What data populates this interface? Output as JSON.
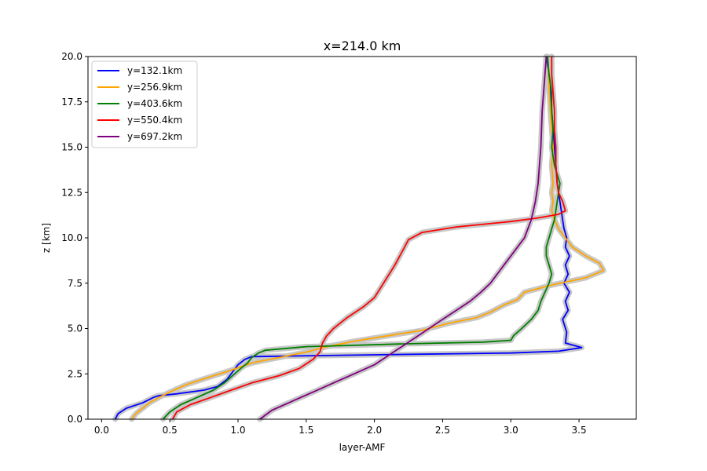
{
  "chart_data": {
    "type": "line",
    "title": "x=214.0 km",
    "xlabel": "layer-AMF",
    "ylabel": "z [km]",
    "xlim": [
      -0.1,
      3.92
    ],
    "ylim": [
      0,
      20
    ],
    "xticks": [
      "0.0",
      "0.5",
      "1.0",
      "1.5",
      "2.0",
      "2.5",
      "3.0",
      "3.5"
    ],
    "yticks": [
      "0.0",
      "2.5",
      "5.0",
      "7.5",
      "10.0",
      "12.5",
      "15.0",
      "17.5",
      "20.0"
    ],
    "grid": false,
    "legend_position": "top-left",
    "uncertainty_band_color": "#c8c8c8",
    "series": [
      {
        "name": "y=132.1km",
        "color": "#0000ff",
        "x": [
          0.1,
          0.12,
          0.18,
          0.3,
          0.38,
          0.42,
          0.55,
          0.75,
          0.85,
          0.92,
          0.96,
          1.0,
          1.05,
          1.1,
          2.0,
          3.0,
          3.35,
          3.52,
          3.4,
          3.41,
          3.38,
          3.42,
          3.4,
          3.43,
          3.39,
          3.42,
          3.4,
          3.43,
          3.4,
          3.41,
          3.39,
          3.38,
          3.37,
          3.36,
          3.34,
          3.33,
          3.32,
          3.31,
          3.3,
          3.29,
          3.29,
          3.28,
          3.27,
          3.26
        ],
        "y": [
          0.0,
          0.3,
          0.6,
          0.9,
          1.2,
          1.3,
          1.4,
          1.6,
          1.8,
          2.2,
          2.6,
          3.0,
          3.3,
          3.45,
          3.55,
          3.65,
          3.75,
          3.95,
          4.2,
          4.8,
          5.5,
          6.0,
          6.5,
          7.0,
          7.5,
          8.0,
          8.5,
          9.0,
          9.5,
          10.0,
          10.5,
          11.0,
          11.5,
          12.0,
          13.0,
          14.0,
          15.0,
          16.0,
          17.0,
          18.0,
          18.5,
          19.0,
          19.5,
          20.0
        ]
      },
      {
        "name": "y=256.9km",
        "color": "#ffa500",
        "x": [
          0.22,
          0.25,
          0.3,
          0.35,
          0.42,
          0.5,
          0.62,
          0.78,
          0.95,
          1.1,
          1.3,
          1.5,
          1.65,
          1.85,
          2.1,
          2.35,
          2.55,
          2.75,
          2.85,
          2.95,
          3.05,
          3.1,
          3.3,
          3.55,
          3.68,
          3.65,
          3.55,
          3.45,
          3.4,
          3.35,
          3.32,
          3.3,
          3.31,
          3.3,
          3.31,
          3.3,
          3.31,
          3.3,
          3.29,
          3.28,
          3.27
        ],
        "y": [
          0.0,
          0.3,
          0.6,
          0.9,
          1.2,
          1.5,
          1.9,
          2.3,
          2.7,
          3.1,
          3.4,
          3.7,
          4.0,
          4.3,
          4.6,
          4.9,
          5.3,
          5.6,
          5.9,
          6.3,
          6.6,
          7.0,
          7.4,
          7.8,
          8.2,
          8.6,
          9.0,
          9.5,
          10.0,
          10.5,
          11.0,
          11.5,
          12.0,
          12.5,
          13.0,
          14.0,
          15.0,
          16.0,
          17.0,
          18.5,
          20.0
        ]
      },
      {
        "name": "y=403.6km",
        "color": "#008000",
        "x": [
          0.45,
          0.5,
          0.58,
          0.7,
          0.82,
          0.9,
          0.96,
          1.02,
          1.07,
          1.1,
          1.15,
          1.2,
          1.5,
          2.2,
          2.8,
          3.0,
          3.02,
          3.08,
          3.15,
          3.2,
          3.22,
          3.25,
          3.28,
          3.3,
          3.28,
          3.26,
          3.26,
          3.28,
          3.3,
          3.32,
          3.33,
          3.34,
          3.36,
          3.32,
          3.3,
          3.31,
          3.3,
          3.3,
          3.28,
          3.27
        ],
        "y": [
          0.0,
          0.4,
          0.8,
          1.2,
          1.6,
          2.0,
          2.4,
          2.8,
          3.1,
          3.4,
          3.65,
          3.8,
          4.0,
          4.15,
          4.25,
          4.35,
          4.6,
          5.0,
          5.5,
          6.0,
          6.5,
          7.0,
          7.5,
          8.0,
          8.5,
          9.0,
          9.5,
          10.0,
          10.5,
          11.0,
          11.5,
          12.0,
          13.0,
          14.0,
          15.0,
          16.0,
          17.0,
          18.0,
          19.0,
          20.0
        ]
      },
      {
        "name": "y=550.4km",
        "color": "#ff0000",
        "x": [
          0.52,
          0.55,
          0.65,
          0.8,
          0.95,
          1.1,
          1.3,
          1.45,
          1.55,
          1.6,
          1.62,
          1.65,
          1.7,
          1.8,
          1.92,
          2.0,
          2.05,
          2.1,
          2.15,
          2.2,
          2.25,
          2.35,
          2.6,
          3.0,
          3.2,
          3.35,
          3.4,
          3.38,
          3.35,
          3.34,
          3.33,
          3.33,
          3.32,
          3.32,
          3.31,
          3.3,
          3.3
        ],
        "y": [
          0.0,
          0.4,
          0.8,
          1.2,
          1.6,
          2.0,
          2.4,
          2.8,
          3.3,
          3.7,
          4.2,
          4.6,
          5.0,
          5.6,
          6.2,
          6.7,
          7.3,
          7.9,
          8.5,
          9.2,
          9.9,
          10.3,
          10.6,
          10.9,
          11.1,
          11.3,
          11.5,
          12.0,
          12.5,
          13.0,
          14.0,
          15.0,
          16.0,
          17.0,
          18.0,
          19.0,
          20.0
        ]
      },
      {
        "name": "y=697.2km",
        "color": "#800080",
        "x": [
          1.16,
          1.25,
          1.4,
          1.55,
          1.7,
          1.85,
          2.0,
          2.1,
          2.2,
          2.3,
          2.4,
          2.5,
          2.6,
          2.7,
          2.78,
          2.85,
          2.9,
          2.95,
          3.0,
          3.05,
          3.1,
          3.15,
          3.18,
          3.2,
          3.21,
          3.22,
          3.23,
          3.25,
          3.26
        ],
        "y": [
          0.0,
          0.5,
          1.0,
          1.5,
          2.0,
          2.5,
          3.0,
          3.5,
          4.0,
          4.5,
          5.0,
          5.5,
          6.0,
          6.5,
          7.0,
          7.5,
          8.0,
          8.5,
          9.0,
          9.5,
          10.0,
          11.0,
          12.0,
          13.0,
          14.0,
          15.0,
          17.0,
          19.0,
          20.0
        ]
      }
    ]
  }
}
